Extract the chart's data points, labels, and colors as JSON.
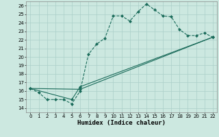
{
  "xlabel": "Humidex (Indice chaleur)",
  "xlim": [
    -0.5,
    22.5
  ],
  "ylim": [
    13.5,
    26.5
  ],
  "yticks": [
    14,
    15,
    16,
    17,
    18,
    19,
    20,
    21,
    22,
    23,
    24,
    25,
    26
  ],
  "xticks": [
    0,
    1,
    2,
    3,
    4,
    5,
    6,
    7,
    8,
    9,
    10,
    11,
    12,
    13,
    14,
    15,
    16,
    17,
    18,
    19,
    20,
    21,
    22
  ],
  "background_color": "#cce8e0",
  "grid_color": "#aacfc8",
  "line_color": "#1a6b5a",
  "line1_x": [
    0,
    1,
    2,
    3,
    4,
    5,
    6,
    7,
    8,
    9,
    10,
    11,
    12,
    13,
    14,
    15,
    16,
    17,
    18,
    19,
    20,
    21,
    22
  ],
  "line1_y": [
    16.3,
    15.8,
    15.0,
    15.0,
    15.0,
    14.5,
    16.0,
    20.3,
    21.5,
    22.2,
    24.8,
    24.8,
    24.2,
    25.3,
    26.2,
    25.5,
    24.8,
    24.7,
    23.2,
    22.5,
    22.5,
    22.8,
    22.3
  ],
  "line2_x": [
    0,
    5,
    6,
    22
  ],
  "line2_y": [
    16.3,
    15.0,
    16.5,
    22.3
  ],
  "line3_x": [
    0,
    6,
    22
  ],
  "line3_y": [
    16.3,
    16.2,
    22.3
  ],
  "tick_fontsize": 5.0,
  "xlabel_fontsize": 6.5
}
